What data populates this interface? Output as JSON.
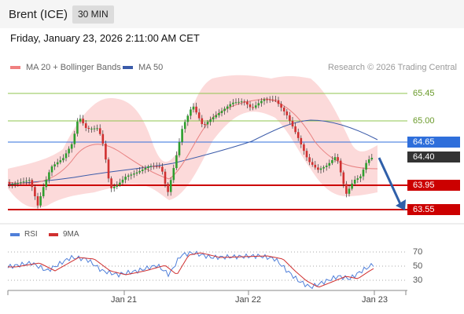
{
  "header": {
    "title": "Brent (ICE)",
    "interval": "30 MIN"
  },
  "datetime": "Friday, January 23, 2026 2:11:00 AM CET",
  "legend": {
    "ma20": {
      "label": "MA 20 + Bollinger Bands",
      "color": "#f08080"
    },
    "ma50": {
      "label": "MA 50",
      "color": "#3b5ba9"
    }
  },
  "credit": "Research © 2026 Trading Central",
  "levels": {
    "r2": "65.45",
    "r1": "65.00",
    "ma_now": "64.65",
    "last": "64.40",
    "s1": "63.95",
    "s2": "63.55"
  },
  "rsi_legend": {
    "rsi": "RSI",
    "ma": "9MA"
  },
  "rsi_levels": [
    "70",
    "50",
    "30"
  ],
  "xaxis": [
    "Jan 21",
    "Jan 22",
    "Jan 23"
  ],
  "colors": {
    "up": "#2e9e2e",
    "down": "#d03030",
    "support": "#cc0000",
    "resistance": "#8fc44f",
    "current": "#2f6fdb",
    "last": "#333333"
  }
}
